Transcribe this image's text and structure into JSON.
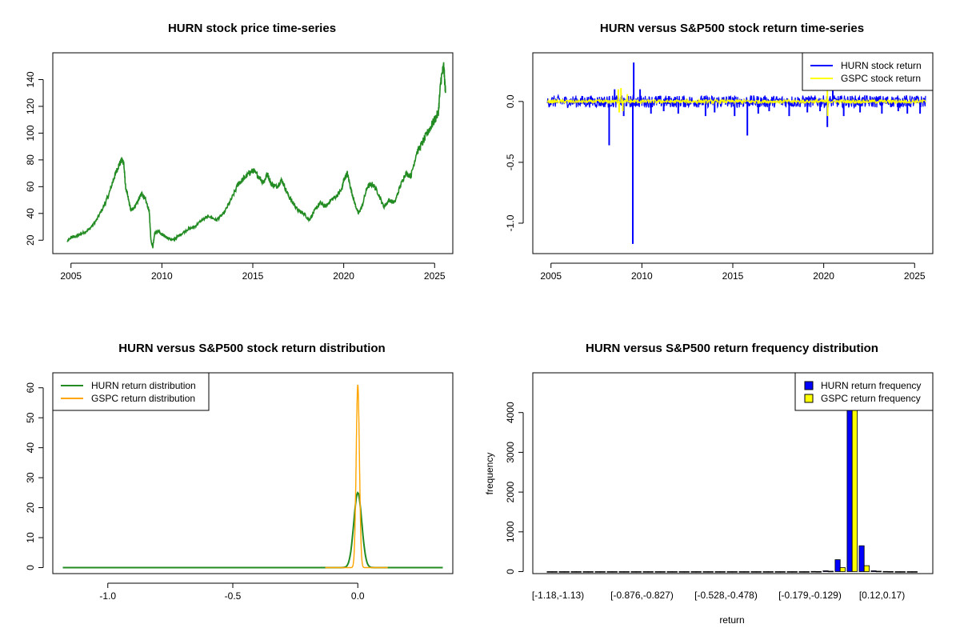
{
  "chart_data": [
    {
      "type": "line",
      "title": "HURN stock price time-series",
      "xlabel": "",
      "ylabel": "",
      "xlim": [
        2004.0,
        2026.0
      ],
      "ylim": [
        10,
        160
      ],
      "x_ticks": [
        2005,
        2010,
        2015,
        2020,
        2025
      ],
      "y_ticks": [
        20,
        40,
        60,
        80,
        100,
        120,
        140
      ],
      "series": [
        {
          "name": "HURN",
          "color": "#228B22",
          "x": [
            2004.8,
            2005.0,
            2005.3,
            2005.6,
            2006.0,
            2006.4,
            2006.8,
            2007.1,
            2007.4,
            2007.6,
            2007.8,
            2007.9,
            2008.0,
            2008.2,
            2008.3,
            2008.5,
            2008.7,
            2008.9,
            2009.1,
            2009.3,
            2009.4,
            2009.5,
            2009.6,
            2009.8,
            2010.0,
            2010.3,
            2010.6,
            2011.0,
            2011.4,
            2011.8,
            2012.2,
            2012.6,
            2013.0,
            2013.4,
            2013.8,
            2014.2,
            2014.5,
            2014.8,
            2015.0,
            2015.3,
            2015.6,
            2015.8,
            2016.0,
            2016.3,
            2016.6,
            2016.9,
            2017.2,
            2017.5,
            2017.8,
            2018.1,
            2018.4,
            2018.7,
            2019.0,
            2019.3,
            2019.6,
            2019.9,
            2020.0,
            2020.2,
            2020.4,
            2020.6,
            2020.8,
            2021.0,
            2021.3,
            2021.6,
            2021.9,
            2022.2,
            2022.5,
            2022.8,
            2023.1,
            2023.4,
            2023.7,
            2024.0,
            2024.3,
            2024.6,
            2024.8,
            2025.0,
            2025.2,
            2025.35,
            2025.5,
            2025.6
          ],
          "y": [
            19,
            22,
            23,
            25,
            28,
            35,
            45,
            55,
            68,
            75,
            80,
            78,
            60,
            48,
            42,
            45,
            50,
            55,
            50,
            42,
            20,
            15,
            25,
            27,
            24,
            22,
            20,
            24,
            28,
            30,
            35,
            38,
            35,
            40,
            50,
            62,
            66,
            70,
            72,
            68,
            63,
            70,
            62,
            60,
            65,
            55,
            48,
            42,
            40,
            35,
            42,
            48,
            45,
            50,
            53,
            58,
            65,
            70,
            58,
            48,
            40,
            45,
            60,
            62,
            55,
            45,
            50,
            48,
            60,
            70,
            68,
            85,
            92,
            100,
            105,
            110,
            115,
            140,
            150,
            130
          ]
        }
      ]
    },
    {
      "type": "line",
      "title": "HURN versus S&P500 stock return time-series",
      "xlabel": "",
      "ylabel": "",
      "xlim": [
        2004.0,
        2026.0
      ],
      "ylim": [
        -1.25,
        0.4
      ],
      "x_ticks": [
        2005,
        2010,
        2015,
        2020,
        2025
      ],
      "y_ticks": [
        0.0,
        -0.5,
        -1.0
      ],
      "y_tick_labels": [
        "0.0",
        "-0.5",
        "-1.0"
      ],
      "legend_position": "top-right",
      "series": [
        {
          "name": "HURN stock return",
          "color": "#0000FF",
          "band": 0.05,
          "spikes": [
            [
              2008.2,
              -0.36
            ],
            [
              2008.5,
              0.1
            ],
            [
              2009.0,
              -0.12
            ],
            [
              2009.5,
              -1.17
            ],
            [
              2009.55,
              0.32
            ],
            [
              2009.9,
              0.1
            ],
            [
              2010.5,
              -0.1
            ],
            [
              2011.2,
              -0.08
            ],
            [
              2012.0,
              -0.1
            ],
            [
              2013.5,
              -0.12
            ],
            [
              2014.0,
              -0.09
            ],
            [
              2015.1,
              -0.12
            ],
            [
              2015.8,
              -0.28
            ],
            [
              2016.4,
              -0.1
            ],
            [
              2017.0,
              -0.08
            ],
            [
              2018.1,
              -0.12
            ],
            [
              2019.1,
              -0.09
            ],
            [
              2019.8,
              -0.08
            ],
            [
              2020.2,
              -0.21
            ],
            [
              2020.5,
              0.1
            ],
            [
              2021.1,
              -0.12
            ],
            [
              2022.0,
              -0.09
            ],
            [
              2023.2,
              -0.1
            ],
            [
              2024.1,
              -0.08
            ],
            [
              2024.6,
              -0.1
            ],
            [
              2025.3,
              -0.1
            ]
          ]
        },
        {
          "name": "GSPC stock return",
          "color": "#FFFF00",
          "band": 0.015,
          "spikes": [
            [
              2008.7,
              0.1
            ],
            [
              2008.75,
              -0.09
            ],
            [
              2008.85,
              0.11
            ],
            [
              2008.95,
              -0.08
            ],
            [
              2009.2,
              0.06
            ],
            [
              2020.2,
              0.09
            ],
            [
              2020.22,
              -0.12
            ]
          ]
        }
      ]
    },
    {
      "type": "line",
      "title": "HURN versus S&P500 stock return distribution",
      "xlabel": "",
      "ylabel": "",
      "xlim": [
        -1.22,
        0.38
      ],
      "ylim": [
        -2,
        65
      ],
      "x_ticks": [
        -1.0,
        -0.5,
        0.0
      ],
      "x_tick_labels": [
        "-1.0",
        "-0.5",
        "0.0"
      ],
      "y_ticks": [
        0,
        10,
        20,
        30,
        40,
        50,
        60
      ],
      "legend_position": "top-left",
      "series": [
        {
          "name": "HURN return distribution",
          "color": "#228B22",
          "peak": 25,
          "sigma": 0.016,
          "x_range": [
            -1.18,
            0.34
          ]
        },
        {
          "name": "GSPC return distribution",
          "color": "#FFA500",
          "peak": 61,
          "sigma": 0.0065,
          "x_range": [
            -0.13,
            0.12
          ]
        }
      ]
    },
    {
      "type": "bar",
      "title": "HURN versus S&P500 return frequency distribution",
      "xlabel": "return",
      "ylabel": "frequency",
      "ylim": [
        -50,
        5000
      ],
      "y_ticks": [
        0,
        1000,
        2000,
        3000,
        4000
      ],
      "x_tick_labels": [
        {
          "index": 0,
          "label": "[-1.18,-1.13)"
        },
        {
          "index": 7,
          "label": "[-0.876,-0.827)"
        },
        {
          "index": 14,
          "label": "[-0.528,-0.478)"
        },
        {
          "index": 21,
          "label": "[-0.179,-0.129)"
        },
        {
          "index": 27,
          "label": "[0.12,0.17)"
        }
      ],
      "legend_position": "top-right",
      "bin_count": 31,
      "series": [
        {
          "name": "HURN return frequency",
          "color": "#0000FF",
          "values": [
            1,
            0,
            0,
            0,
            0,
            0,
            0,
            0,
            0,
            0,
            0,
            0,
            0,
            0,
            0,
            0,
            0,
            0,
            0,
            0,
            0,
            0,
            5,
            20,
            300,
            4990,
            650,
            20,
            5,
            1,
            0
          ]
        },
        {
          "name": "GSPC return frequency",
          "color": "#FFFF00",
          "values": [
            0,
            0,
            0,
            0,
            0,
            0,
            0,
            0,
            0,
            0,
            0,
            0,
            0,
            0,
            0,
            0,
            0,
            0,
            0,
            0,
            0,
            0,
            3,
            10,
            100,
            4990,
            150,
            10,
            2,
            0,
            0
          ]
        }
      ]
    }
  ]
}
